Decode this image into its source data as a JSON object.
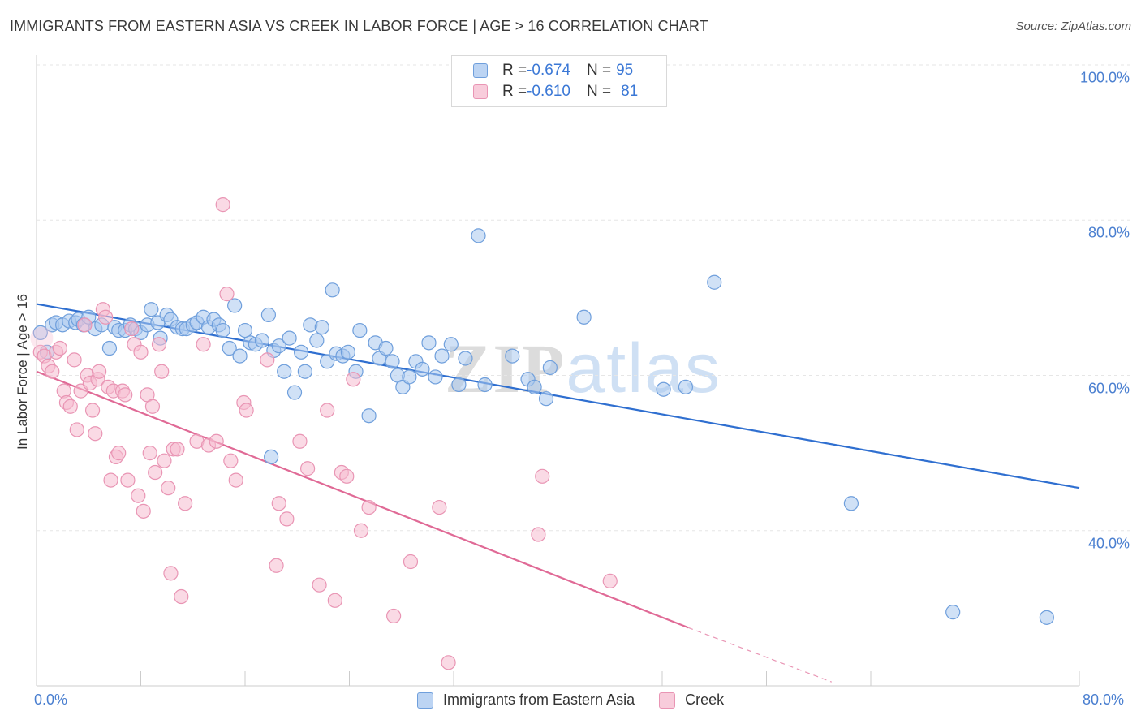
{
  "title": "IMMIGRANTS FROM EASTERN ASIA VS CREEK IN LABOR FORCE | AGE > 16 CORRELATION CHART",
  "source": "Source: ZipAtlas.com",
  "watermark": {
    "zip": "ZIP",
    "atlas": "atlas"
  },
  "legend": {
    "rows": [
      {
        "r_label": "R = ",
        "r_value": "-0.674",
        "n_label": "N = ",
        "n_value": "95"
      },
      {
        "r_label": "R = ",
        "r_value": "-0.610",
        "n_label": "N = ",
        "n_value": "81"
      }
    ]
  },
  "colors": {
    "blue_fill": "#a9c8ee",
    "blue_stroke": "#6f9fdc",
    "blue_line": "#2f6fd0",
    "pink_fill": "#f6bcd0",
    "pink_stroke": "#e995b4",
    "pink_line": "#e06a96",
    "grid": "#e6e6e6",
    "tick_text": "#4a7fd0"
  },
  "chart_data": {
    "type": "scatter",
    "title": "IMMIGRANTS FROM EASTERN ASIA VS CREEK IN LABOR FORCE | AGE > 16 CORRELATION CHART",
    "xlabel": "",
    "ylabel": "In Labor Force | Age > 16",
    "xlim": [
      0,
      80
    ],
    "ylim": [
      20,
      100
    ],
    "x_ticks": [
      "0.0%",
      "80.0%"
    ],
    "y_ticks": [
      "100.0%",
      "80.0%",
      "60.0%",
      "40.0%"
    ],
    "y_tick_values": [
      100,
      80,
      60,
      40
    ],
    "grid": true,
    "legend_position": "top-center",
    "series": [
      {
        "name": "Immigrants from Eastern Asia",
        "color": "blue",
        "r": -0.674,
        "n": 95,
        "trend": {
          "x0": 0.0,
          "y0": 69.2,
          "x1": 80.0,
          "y1": 45.5
        },
        "points": [
          [
            0.3,
            65.5
          ],
          [
            0.8,
            63.0
          ],
          [
            1.2,
            66.5
          ],
          [
            1.5,
            66.8
          ],
          [
            2.0,
            66.5
          ],
          [
            2.5,
            67.0
          ],
          [
            3.0,
            66.8
          ],
          [
            3.2,
            67.2
          ],
          [
            3.6,
            66.5
          ],
          [
            4.0,
            67.5
          ],
          [
            4.5,
            66.0
          ],
          [
            5.0,
            66.5
          ],
          [
            5.6,
            63.5
          ],
          [
            6.0,
            66.2
          ],
          [
            6.3,
            65.8
          ],
          [
            6.8,
            65.8
          ],
          [
            7.2,
            66.5
          ],
          [
            7.6,
            66.0
          ],
          [
            8.0,
            65.5
          ],
          [
            8.5,
            66.5
          ],
          [
            8.8,
            68.5
          ],
          [
            9.3,
            66.8
          ],
          [
            9.5,
            64.8
          ],
          [
            10.0,
            67.8
          ],
          [
            10.3,
            67.2
          ],
          [
            10.8,
            66.2
          ],
          [
            11.2,
            66.0
          ],
          [
            11.5,
            66.0
          ],
          [
            12.0,
            66.5
          ],
          [
            12.3,
            66.8
          ],
          [
            12.8,
            67.5
          ],
          [
            13.2,
            66.2
          ],
          [
            13.6,
            67.2
          ],
          [
            14.0,
            66.5
          ],
          [
            14.3,
            65.8
          ],
          [
            14.8,
            63.5
          ],
          [
            15.2,
            69.0
          ],
          [
            15.6,
            62.5
          ],
          [
            16.0,
            65.8
          ],
          [
            16.4,
            64.2
          ],
          [
            16.8,
            64.0
          ],
          [
            17.3,
            64.5
          ],
          [
            17.8,
            67.8
          ],
          [
            18.2,
            63.2
          ],
          [
            18.6,
            63.8
          ],
          [
            19.0,
            60.5
          ],
          [
            19.4,
            64.8
          ],
          [
            19.8,
            57.8
          ],
          [
            20.3,
            63.0
          ],
          [
            20.6,
            60.5
          ],
          [
            21.0,
            66.5
          ],
          [
            21.5,
            64.5
          ],
          [
            21.9,
            66.2
          ],
          [
            22.3,
            61.8
          ],
          [
            22.7,
            71.0
          ],
          [
            23.0,
            62.8
          ],
          [
            23.5,
            62.5
          ],
          [
            23.9,
            63.0
          ],
          [
            24.5,
            60.5
          ],
          [
            24.8,
            65.8
          ],
          [
            25.5,
            54.8
          ],
          [
            26.0,
            64.2
          ],
          [
            26.3,
            62.2
          ],
          [
            26.8,
            63.5
          ],
          [
            27.3,
            61.8
          ],
          [
            27.7,
            60.0
          ],
          [
            28.1,
            58.5
          ],
          [
            28.6,
            59.8
          ],
          [
            29.1,
            61.8
          ],
          [
            29.6,
            60.8
          ],
          [
            30.1,
            64.2
          ],
          [
            30.6,
            59.8
          ],
          [
            31.1,
            62.5
          ],
          [
            31.8,
            64.0
          ],
          [
            32.4,
            58.8
          ],
          [
            32.9,
            62.2
          ],
          [
            33.9,
            78.0
          ],
          [
            34.4,
            58.8
          ],
          [
            36.5,
            62.5
          ],
          [
            37.7,
            59.5
          ],
          [
            38.2,
            58.5
          ],
          [
            39.1,
            57.0
          ],
          [
            39.4,
            61.0
          ],
          [
            42.0,
            67.5
          ],
          [
            48.1,
            58.2
          ],
          [
            49.8,
            58.5
          ],
          [
            52.0,
            72.0
          ],
          [
            62.5,
            43.5
          ],
          [
            70.3,
            29.5
          ],
          [
            77.5,
            28.8
          ],
          [
            18.0,
            49.5
          ]
        ]
      },
      {
        "name": "Creek",
        "color": "pink",
        "r": -0.61,
        "n": 81,
        "trend": {
          "x0": 0.0,
          "y0": 60.5,
          "x1": 50.0,
          "y1": 27.5,
          "dash_x1": 61.0,
          "dash_y1": 20.5
        },
        "points": [
          [
            0.3,
            63.0
          ],
          [
            0.6,
            62.5
          ],
          [
            0.9,
            61.2
          ],
          [
            1.2,
            60.5
          ],
          [
            1.5,
            63.0
          ],
          [
            1.8,
            63.5
          ],
          [
            2.1,
            58.0
          ],
          [
            2.3,
            56.5
          ],
          [
            2.6,
            56.0
          ],
          [
            2.9,
            62.0
          ],
          [
            3.1,
            53.0
          ],
          [
            3.4,
            58.0
          ],
          [
            3.7,
            66.5
          ],
          [
            3.9,
            60.0
          ],
          [
            4.1,
            59.0
          ],
          [
            4.3,
            55.5
          ],
          [
            4.5,
            52.5
          ],
          [
            4.7,
            59.5
          ],
          [
            4.8,
            60.5
          ],
          [
            5.1,
            68.5
          ],
          [
            5.3,
            67.5
          ],
          [
            5.5,
            58.5
          ],
          [
            5.7,
            46.5
          ],
          [
            5.9,
            58.0
          ],
          [
            6.1,
            49.5
          ],
          [
            6.3,
            50.0
          ],
          [
            6.6,
            58.0
          ],
          [
            6.8,
            57.5
          ],
          [
            7.0,
            46.5
          ],
          [
            7.3,
            66.0
          ],
          [
            7.5,
            64.0
          ],
          [
            7.8,
            44.5
          ],
          [
            8.0,
            63.0
          ],
          [
            8.2,
            42.5
          ],
          [
            8.5,
            57.5
          ],
          [
            8.7,
            50.0
          ],
          [
            8.9,
            56.0
          ],
          [
            9.1,
            47.5
          ],
          [
            9.4,
            64.0
          ],
          [
            9.6,
            60.5
          ],
          [
            9.8,
            49.0
          ],
          [
            10.1,
            45.5
          ],
          [
            10.3,
            34.5
          ],
          [
            10.5,
            50.5
          ],
          [
            10.8,
            50.5
          ],
          [
            11.1,
            31.5
          ],
          [
            11.4,
            43.5
          ],
          [
            12.3,
            51.5
          ],
          [
            12.8,
            64.0
          ],
          [
            13.2,
            51.0
          ],
          [
            13.8,
            51.5
          ],
          [
            14.3,
            82.0
          ],
          [
            14.6,
            70.5
          ],
          [
            14.9,
            49.0
          ],
          [
            15.3,
            46.5
          ],
          [
            15.9,
            56.5
          ],
          [
            16.1,
            55.5
          ],
          [
            17.7,
            62.0
          ],
          [
            18.4,
            35.5
          ],
          [
            18.6,
            43.5
          ],
          [
            19.2,
            41.5
          ],
          [
            20.2,
            51.5
          ],
          [
            20.8,
            48.0
          ],
          [
            21.7,
            33.0
          ],
          [
            22.3,
            55.5
          ],
          [
            22.9,
            31.0
          ],
          [
            23.4,
            47.5
          ],
          [
            23.8,
            47.0
          ],
          [
            24.3,
            59.5
          ],
          [
            24.9,
            40.0
          ],
          [
            25.5,
            43.0
          ],
          [
            27.4,
            29.0
          ],
          [
            28.7,
            36.0
          ],
          [
            30.9,
            43.0
          ],
          [
            31.6,
            23.0
          ],
          [
            38.5,
            39.5
          ],
          [
            38.8,
            47.0
          ],
          [
            44.0,
            33.5
          ]
        ]
      }
    ]
  },
  "bottom_legend": [
    {
      "label": "Immigrants from Eastern Asia"
    },
    {
      "label": "Creek"
    }
  ]
}
